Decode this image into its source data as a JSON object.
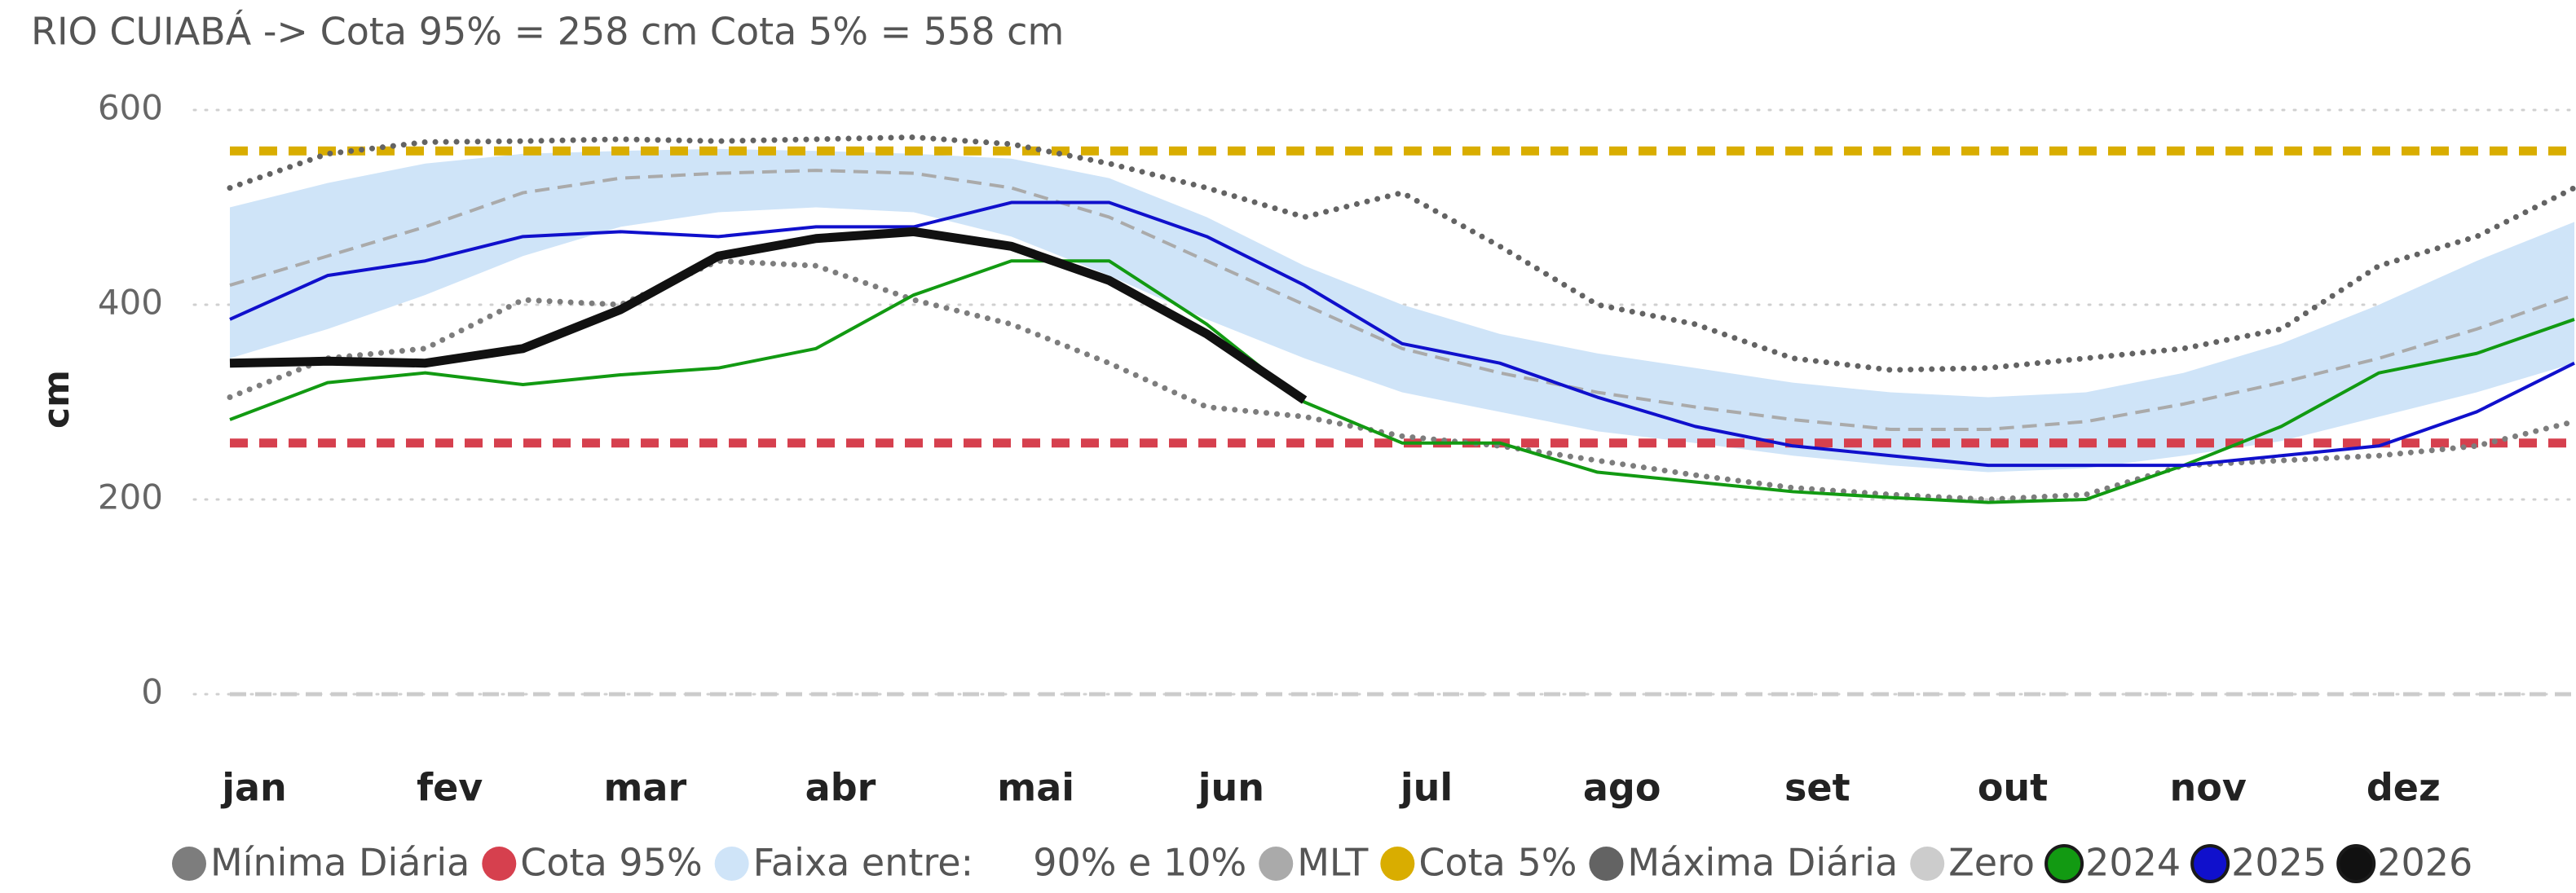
{
  "chart_data": {
    "type": "line",
    "title": "RIO CUIABÁ -> Cota 95% = 258 cm   Cota 5% = 558 cm",
    "y_label": "cm",
    "ylim": [
      0,
      600
    ],
    "yticks": [
      0,
      200,
      400,
      600
    ],
    "grid": true,
    "legend": "bottom",
    "categories": [
      "jan",
      null,
      "fev",
      null,
      "mar",
      null,
      "abr",
      null,
      "mai",
      null,
      "jun",
      null,
      "jul",
      null,
      "ago",
      null,
      "set",
      null,
      "out",
      null,
      "nov",
      null,
      "dez",
      null,
      null
    ],
    "series": [
      {
        "name": "Mínima Diária",
        "color": "#7d7d7d",
        "dash": "dotted",
        "values": [
          305,
          345,
          355,
          405,
          400,
          445,
          440,
          405,
          380,
          340,
          295,
          285,
          265,
          255,
          240,
          225,
          212,
          205,
          200,
          205,
          235,
          240,
          245,
          255,
          280
        ]
      },
      {
        "name": "Cota 95%",
        "color": "#d6404e",
        "dash": "dashed",
        "value": 258
      },
      {
        "name": "Faixa entre:     90% e 10%",
        "color": "#cfe4f8",
        "upper": [
          500,
          525,
          545,
          555,
          558,
          560,
          558,
          555,
          550,
          530,
          490,
          440,
          400,
          370,
          350,
          335,
          320,
          310,
          305,
          310,
          330,
          360,
          400,
          445,
          485
        ],
        "lower": [
          345,
          375,
          410,
          450,
          480,
          495,
          500,
          495,
          470,
          430,
          385,
          345,
          310,
          290,
          270,
          258,
          245,
          235,
          228,
          232,
          245,
          260,
          285,
          310,
          340
        ]
      },
      {
        "name": "MLT",
        "color": "#aaaaaa",
        "dash": "dashed",
        "values": [
          420,
          450,
          480,
          515,
          530,
          535,
          538,
          535,
          520,
          490,
          445,
          400,
          355,
          330,
          310,
          295,
          282,
          272,
          272,
          280,
          298,
          320,
          345,
          375,
          410
        ]
      },
      {
        "name": "Cota 5%",
        "color": "#d9ad00",
        "dash": "dashed",
        "value": 558
      },
      {
        "name": "Máxima Diária",
        "color": "#636363",
        "dash": "dotted",
        "values": [
          520,
          555,
          567,
          568,
          570,
          568,
          570,
          572,
          565,
          545,
          520,
          490,
          515,
          460,
          400,
          380,
          345,
          333,
          335,
          345,
          355,
          375,
          440,
          470,
          520
        ]
      },
      {
        "name": "Zero",
        "color": "#cccccc",
        "dash": "dashed",
        "value": 0
      },
      {
        "name": "2024",
        "color": "#129a12",
        "dash": "solid",
        "values": [
          282,
          320,
          330,
          318,
          328,
          335,
          355,
          410,
          445,
          445,
          380,
          300,
          258,
          258,
          228,
          218,
          208,
          202,
          197,
          200,
          235,
          275,
          330,
          350,
          385
        ]
      },
      {
        "name": "2025",
        "color": "#1010cc",
        "dash": "solid",
        "values": [
          385,
          430,
          445,
          470,
          475,
          470,
          480,
          480,
          505,
          505,
          470,
          420,
          360,
          340,
          305,
          275,
          255,
          245,
          235,
          235,
          235,
          245,
          255,
          290,
          340
        ]
      },
      {
        "name": "2026",
        "color": "#111111",
        "dash": "solid",
        "values": [
          340,
          342,
          340,
          355,
          395,
          450,
          468,
          475,
          460,
          425,
          370,
          302,
          null,
          null,
          null,
          null,
          null,
          null,
          null,
          null,
          null,
          null,
          null,
          null,
          null
        ]
      }
    ]
  }
}
